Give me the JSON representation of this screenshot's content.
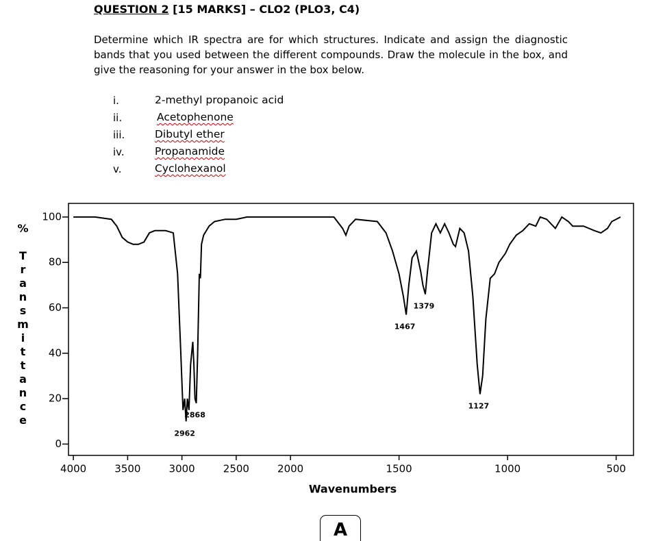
{
  "header": {
    "question": "QUESTION 2",
    "marks": " [15 MARKS] – CLO2 (PLO3, C4)"
  },
  "instructions": "Determine which IR spectra are for which structures. Indicate and assign the diagnostic bands that you used between the different compounds. Draw the molecule in the box, and give the reasoning for your answer in the box below.",
  "options": [
    {
      "numeral": "i.",
      "name": "2-methyl propanoic acid"
    },
    {
      "numeral": "ii.",
      "name": "Acetophenone"
    },
    {
      "numeral": "iii.",
      "name": "Dibutyl ether"
    },
    {
      "numeral": "iv.",
      "name": "Propanamide"
    },
    {
      "numeral": "v.",
      "name": "Cyclohexanol"
    }
  ],
  "chart_data": {
    "type": "line",
    "xlabel": "Wavenumbers",
    "ylabel": "% Transmittance",
    "color": "#000000",
    "xlim": [
      4045,
      420
    ],
    "x_scale_break": 2000,
    "x_scale_factor_below_break": 2,
    "ylim": [
      -5,
      106
    ],
    "xticks": [
      4000,
      3500,
      3000,
      2500,
      2000,
      1500,
      1000,
      500
    ],
    "yticks": [
      0,
      20,
      40,
      60,
      80,
      100
    ],
    "x": [
      4000,
      3800,
      3650,
      3600,
      3550,
      3500,
      3450,
      3400,
      3350,
      3300,
      3250,
      3150,
      3080,
      3040,
      3010,
      2990,
      2975,
      2962,
      2950,
      2935,
      2920,
      2900,
      2890,
      2880,
      2868,
      2855,
      2840,
      2830,
      2820,
      2800,
      2750,
      2700,
      2600,
      2500,
      2400,
      2200,
      2000,
      1800,
      1760,
      1745,
      1730,
      1700,
      1600,
      1560,
      1530,
      1500,
      1480,
      1467,
      1455,
      1440,
      1420,
      1400,
      1390,
      1379,
      1370,
      1350,
      1330,
      1310,
      1290,
      1270,
      1250,
      1240,
      1220,
      1200,
      1180,
      1160,
      1140,
      1127,
      1115,
      1100,
      1080,
      1060,
      1040,
      1010,
      990,
      960,
      930,
      900,
      870,
      850,
      820,
      780,
      750,
      720,
      700,
      650,
      600,
      570,
      540,
      520,
      500,
      480
    ],
    "values": [
      100,
      100,
      99,
      96,
      91,
      89,
      88,
      88,
      89,
      93,
      94,
      94,
      93,
      75,
      40,
      15,
      20,
      10,
      20,
      15,
      35,
      45,
      35,
      20,
      18,
      40,
      75,
      73,
      88,
      92,
      96,
      98,
      99,
      99,
      100,
      100,
      100,
      100,
      95,
      92,
      96,
      99,
      98,
      93,
      85,
      75,
      65,
      57,
      70,
      82,
      85,
      76,
      70,
      66,
      75,
      93,
      97,
      93,
      97,
      93,
      88,
      87,
      95,
      93,
      85,
      65,
      35,
      22,
      30,
      55,
      73,
      75,
      80,
      84,
      88,
      92,
      94,
      97,
      96,
      100,
      99,
      95,
      100,
      98,
      96,
      96,
      94,
      93,
      95,
      98,
      99,
      100
    ],
    "peak_labels": [
      2962,
      2868,
      1467,
      1379,
      1127
    ]
  },
  "answer_box": "A"
}
